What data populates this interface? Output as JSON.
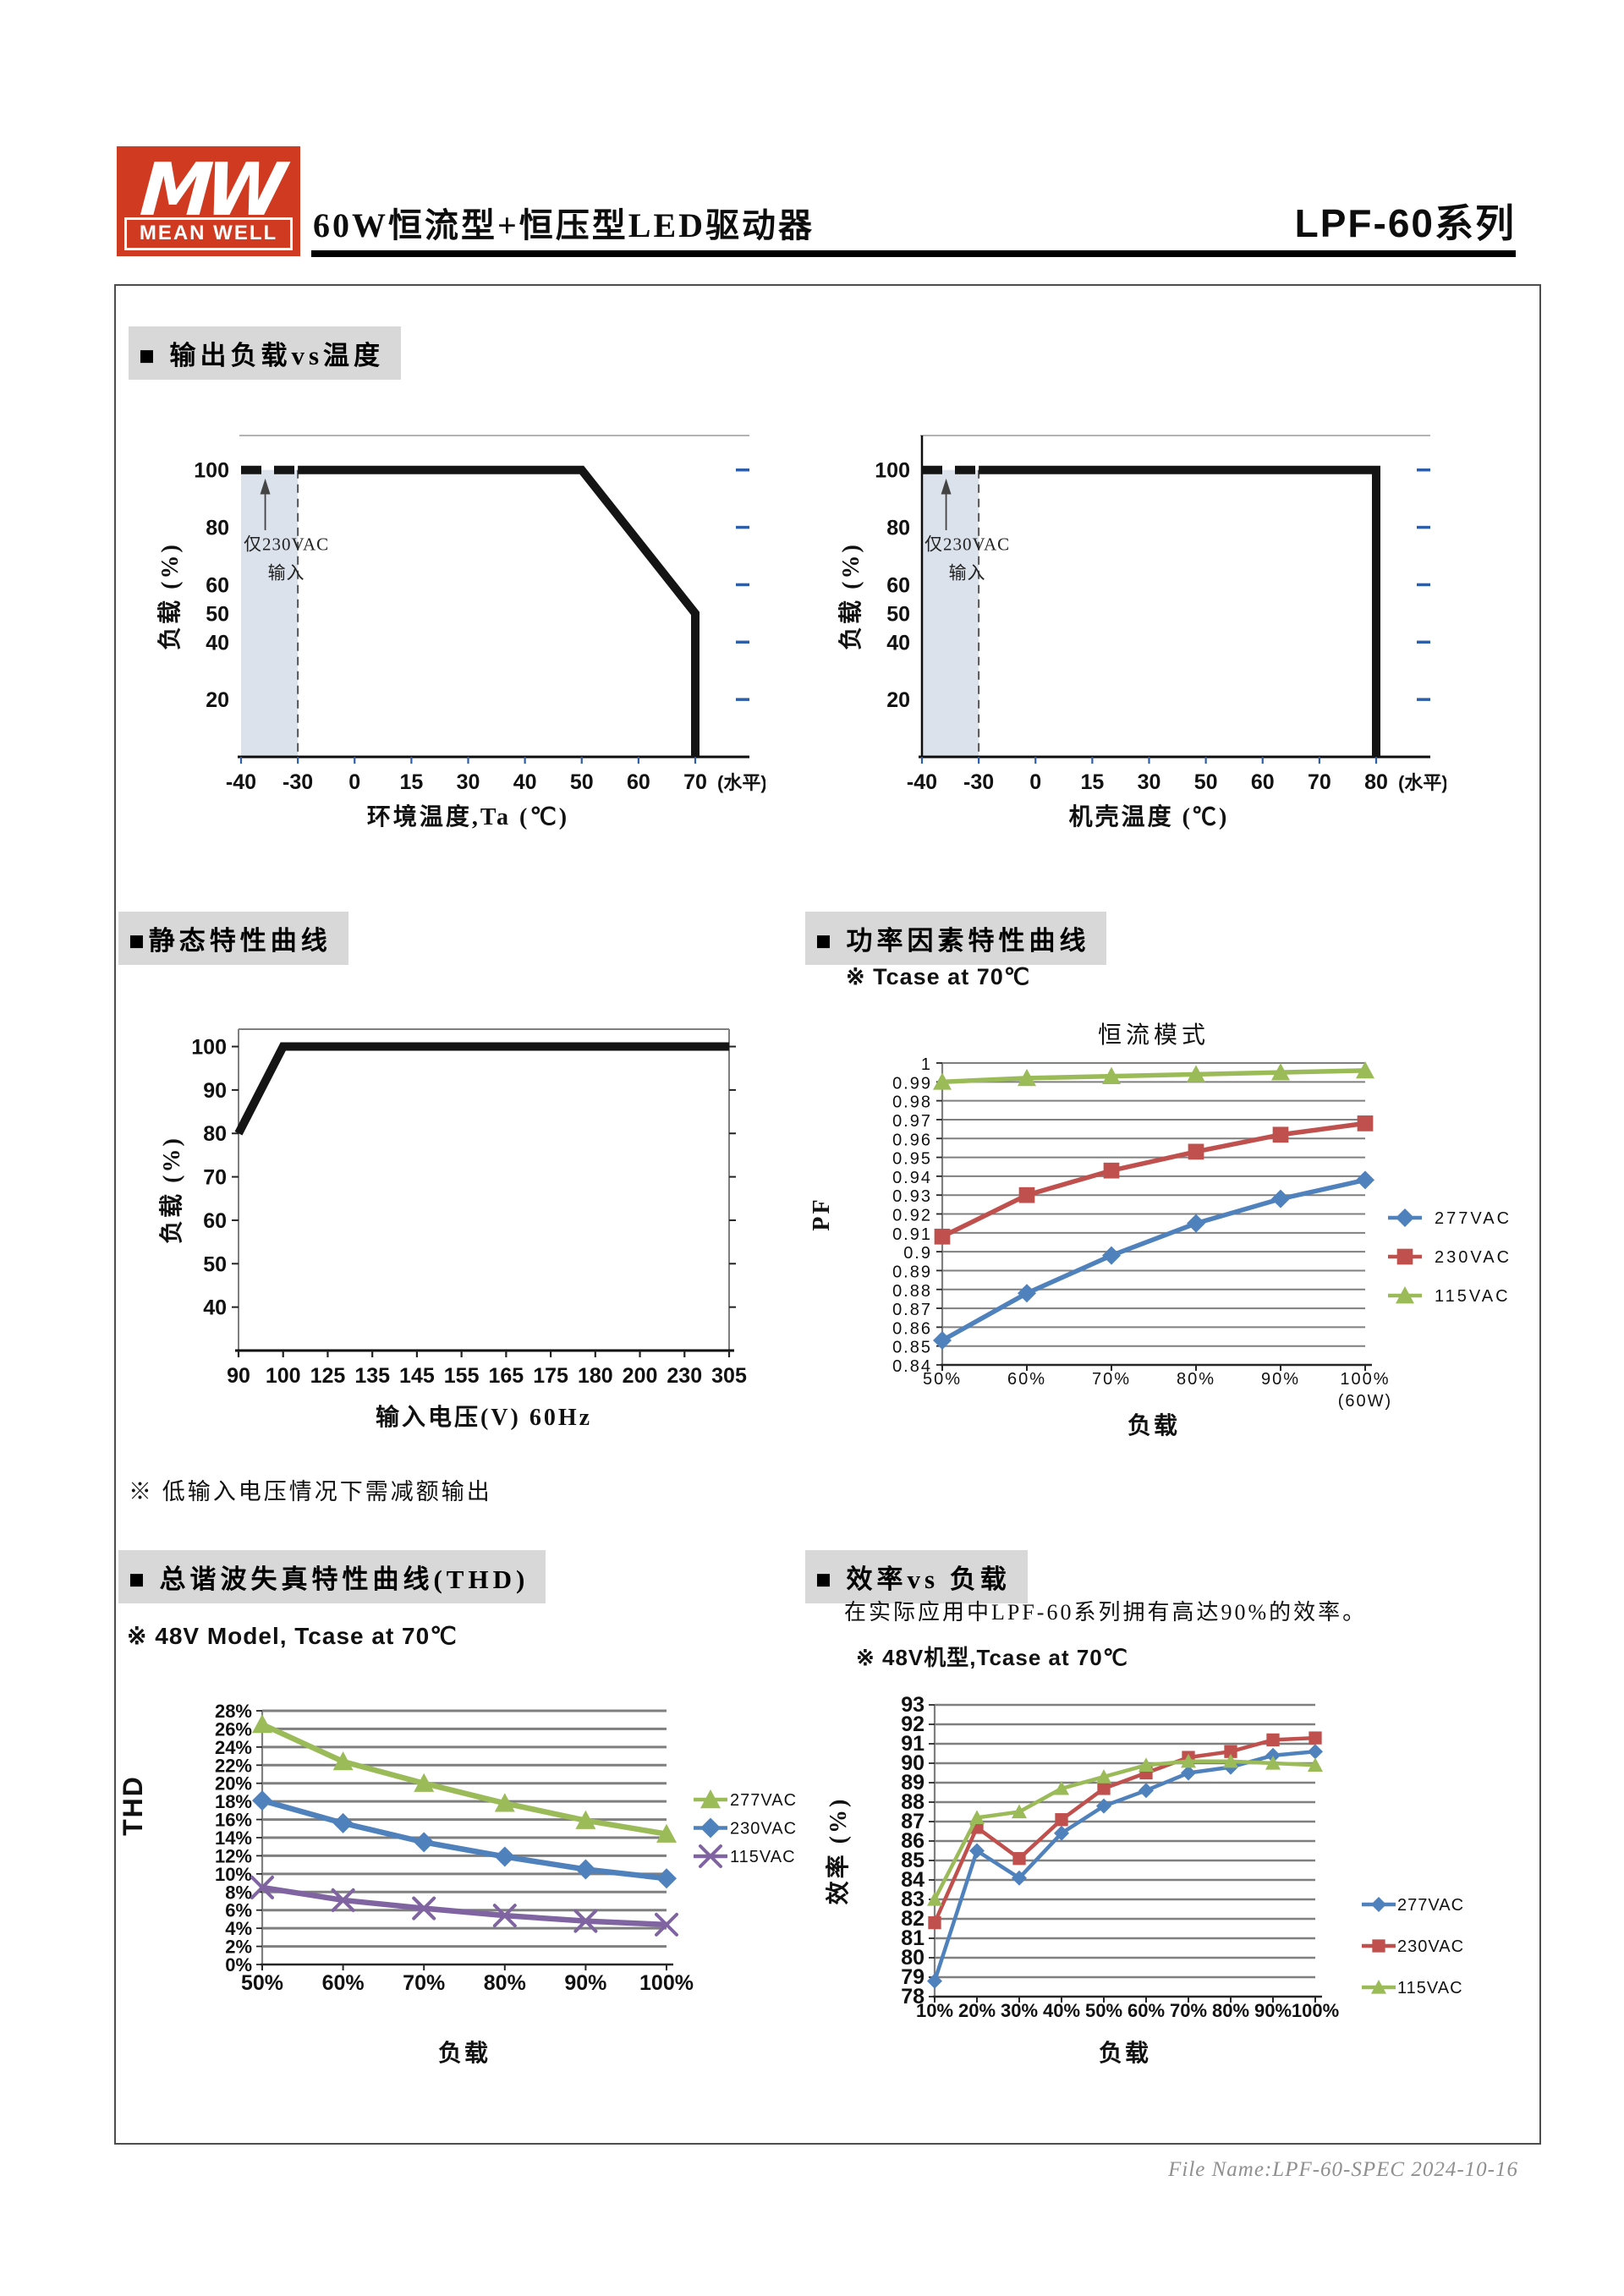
{
  "page": {
    "header": {
      "logo_mw": "MW",
      "logo_name": "MEAN WELL",
      "title": "60W恒流型+恒压型LED驱动器",
      "series": "LPF-60系列"
    },
    "footer": "File Name:LPF-60-SPEC  2024-10-16"
  },
  "sections": {
    "derating": {
      "title": "■ 输出负载vs温度"
    },
    "static": {
      "title": "■静态特性曲线",
      "note": "※ 低输入电压情况下需减额输出"
    },
    "pf": {
      "title": "■ 功率因素特性曲线",
      "note": "※ Tcase at 70℃"
    },
    "thd": {
      "title": "■ 总谐波失真特性曲线(THD)",
      "note": "※ 48V Model, Tcase at 70℃"
    },
    "eff": {
      "title": "■ 效率vs 负载",
      "desc": "在实际应用中LPF-60系列拥有高达90%的效率。",
      "note": "※ 48V机型,Tcase at 70℃"
    }
  },
  "chart_data": [
    {
      "id": "ambient",
      "type": "derating",
      "xlabel": "环境温度,Ta (℃)",
      "ylabel": "负载 (%)",
      "x_categories": [
        "-40",
        "-30",
        "0",
        "15",
        "30",
        "40",
        "50",
        "60",
        "70"
      ],
      "x_suffix": "(水平)",
      "y_ticks": [
        20,
        40,
        50,
        60,
        80,
        100
      ],
      "right_ticks": [
        20,
        40,
        60,
        80,
        100
      ],
      "ylim": [
        0,
        112
      ],
      "shaded_span": [
        0,
        1
      ],
      "shade_color": "#dbe2eb",
      "vline_index": 1,
      "annotation": [
        "仅230VAC",
        "输入"
      ],
      "dashed_curve": [
        [
          0,
          100
        ],
        [
          1,
          100
        ]
      ],
      "solid_curve": [
        [
          1,
          100
        ],
        [
          6,
          100
        ],
        [
          8,
          50
        ],
        [
          8,
          0
        ]
      ]
    },
    {
      "id": "case",
      "type": "derating",
      "xlabel": "机壳温度 (℃)",
      "ylabel": "负载 (%)",
      "x_categories": [
        "-40",
        "-30",
        "0",
        "15",
        "30",
        "50",
        "60",
        "70",
        "80"
      ],
      "x_suffix": "(水平)",
      "y_ticks": [
        20,
        40,
        50,
        60,
        80,
        100
      ],
      "right_ticks": [
        20,
        40,
        60,
        80,
        100
      ],
      "ylim": [
        0,
        112
      ],
      "shaded_span": [
        0,
        1
      ],
      "shade_color": "#dbe2eb",
      "vline_index": 1,
      "annotation": [
        "仅230VAC",
        "输入"
      ],
      "dashed_curve": [
        [
          0,
          100
        ],
        [
          1,
          100
        ]
      ],
      "solid_curve": [
        [
          1,
          100
        ],
        [
          8,
          100
        ],
        [
          8,
          0
        ]
      ]
    },
    {
      "id": "static",
      "type": "derating",
      "xlabel": "输入电压(V) 60Hz",
      "ylabel": "负载 (%)",
      "x_categories": [
        "90",
        "100",
        "125",
        "135",
        "145",
        "155",
        "165",
        "175",
        "180",
        "200",
        "230",
        "305"
      ],
      "y_ticks": [
        40,
        50,
        60,
        70,
        80,
        90,
        100
      ],
      "ylim": [
        30,
        104
      ],
      "solid_curve": [
        [
          0,
          80
        ],
        [
          1,
          100
        ],
        [
          11,
          100
        ]
      ]
    },
    {
      "id": "pf",
      "type": "line",
      "title": "恒流模式",
      "xlabel": "负载",
      "ylabel": "PF",
      "categories": [
        "50%",
        "60%",
        "70%",
        "80%",
        "90%",
        "100%"
      ],
      "x_sub_label": {
        "index": 5,
        "text": "(60W)"
      },
      "ylim": [
        0.84,
        1.0
      ],
      "y_step": 0.01,
      "series": [
        {
          "name": "277VAC",
          "color": "#4F81BD",
          "marker": "diamond",
          "values": [
            0.853,
            0.878,
            0.898,
            0.915,
            0.928,
            0.938
          ]
        },
        {
          "name": "230VAC",
          "color": "#C0504D",
          "marker": "square",
          "values": [
            0.908,
            0.93,
            0.943,
            0.953,
            0.962,
            0.968
          ]
        },
        {
          "name": "115VAC",
          "color": "#9BBB59",
          "marker": "triangle",
          "values": [
            0.99,
            0.992,
            0.993,
            0.994,
            0.995,
            0.996
          ]
        }
      ]
    },
    {
      "id": "thd",
      "type": "line",
      "xlabel": "负载",
      "ylabel": "THD",
      "categories": [
        "50%",
        "60%",
        "70%",
        "80%",
        "90%",
        "100%"
      ],
      "ylim": [
        0,
        28
      ],
      "y_step": 2,
      "y_fmt": "pct",
      "series": [
        {
          "name": "277VAC",
          "color": "#9BBB59",
          "marker": "triangle",
          "values": [
            26.5,
            22.4,
            20.0,
            17.8,
            15.9,
            14.4
          ]
        },
        {
          "name": "230VAC",
          "color": "#4F81BD",
          "marker": "diamond",
          "values": [
            18.1,
            15.6,
            13.5,
            11.9,
            10.5,
            9.5
          ]
        },
        {
          "name": "115VAC",
          "color": "#8064A2",
          "marker": "x",
          "values": [
            8.5,
            7.1,
            6.2,
            5.4,
            4.8,
            4.4
          ]
        }
      ]
    },
    {
      "id": "eff",
      "type": "line",
      "xlabel": "负载",
      "ylabel": "效率 (%)",
      "categories": [
        "10%",
        "20%",
        "30%",
        "40%",
        "50%",
        "60%",
        "70%",
        "80%",
        "90%",
        "100%"
      ],
      "ylim": [
        78,
        93
      ],
      "y_step": 1,
      "series": [
        {
          "name": "277VAC",
          "color": "#4F81BD",
          "marker": "diamond",
          "values": [
            78.8,
            85.5,
            84.1,
            86.4,
            87.8,
            88.6,
            89.5,
            89.8,
            90.4,
            90.6
          ]
        },
        {
          "name": "230VAC",
          "color": "#C0504D",
          "marker": "square",
          "values": [
            81.8,
            86.7,
            85.1,
            87.1,
            88.7,
            89.5,
            90.3,
            90.6,
            91.2,
            91.3
          ]
        },
        {
          "name": "115VAC",
          "color": "#9BBB59",
          "marker": "triangle",
          "values": [
            83.0,
            87.2,
            87.5,
            88.7,
            89.3,
            89.9,
            90.1,
            90.1,
            90.0,
            89.9
          ]
        }
      ]
    }
  ]
}
